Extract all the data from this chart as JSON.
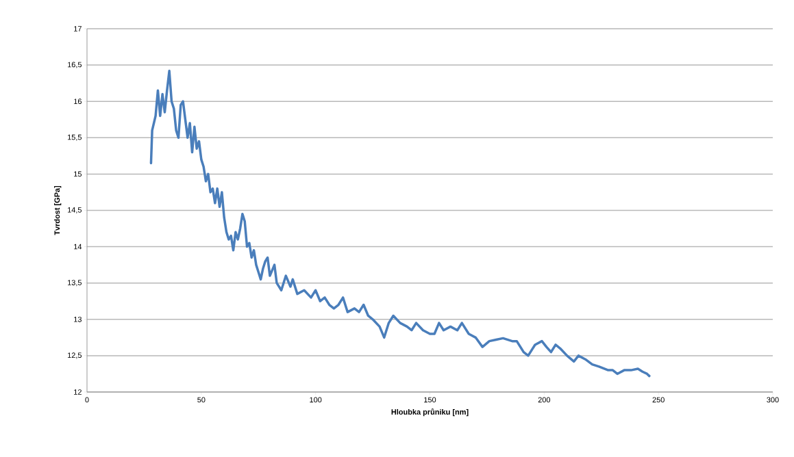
{
  "chart_data": {
    "type": "line",
    "xlabel": "Hloubka průniku [nm]",
    "ylabel": "Tvrdost [GPa]",
    "xlim": [
      0,
      300
    ],
    "ylim": [
      12,
      17
    ],
    "xticks": [
      0,
      50,
      100,
      150,
      200,
      250,
      300
    ],
    "yticks": [
      12,
      {
        "value": 12.5,
        "label": "12,5"
      },
      13,
      {
        "value": 13.5,
        "label": "13,5"
      },
      14,
      {
        "value": 14.5,
        "label": "14,5"
      },
      15,
      {
        "value": 15.5,
        "label": "15,5"
      },
      16,
      {
        "value": 16.5,
        "label": "16,5"
      },
      17
    ],
    "grid": "y",
    "marker": "none",
    "line_style": "solid",
    "series": [
      {
        "color": "#4a7ebb",
        "x": [
          28,
          28.5,
          30,
          31,
          32,
          33,
          34,
          35,
          36,
          37,
          38,
          39,
          40,
          41,
          42,
          43,
          44,
          45,
          46,
          47,
          48,
          49,
          50,
          51,
          52,
          53,
          54,
          55,
          56,
          57,
          58,
          59,
          60,
          61,
          62,
          63,
          64,
          65,
          66,
          67,
          68,
          69,
          70,
          71,
          72,
          73,
          74,
          75,
          76,
          77,
          78,
          79,
          80,
          82,
          83,
          85,
          87,
          89,
          90,
          92,
          95,
          98,
          100,
          102,
          104,
          106,
          108,
          110,
          112,
          114,
          117,
          119,
          121,
          123,
          125,
          128,
          130,
          132,
          134,
          137,
          140,
          142,
          144,
          147,
          150,
          152,
          154,
          156,
          159,
          162,
          164,
          167,
          170,
          173,
          176,
          179,
          182,
          186,
          188,
          191,
          193,
          196,
          199,
          201,
          203,
          205,
          207,
          210,
          213,
          215,
          218,
          221,
          224,
          228,
          230,
          232,
          235,
          238,
          241,
          243,
          245,
          246
        ],
        "values": [
          15.15,
          15.6,
          15.8,
          16.15,
          15.8,
          16.1,
          15.85,
          16.15,
          16.42,
          16.0,
          15.9,
          15.6,
          15.5,
          15.95,
          16.0,
          15.75,
          15.5,
          15.7,
          15.3,
          15.65,
          15.35,
          15.45,
          15.2,
          15.1,
          14.9,
          15.0,
          14.75,
          14.8,
          14.6,
          14.8,
          14.55,
          14.75,
          14.4,
          14.2,
          14.1,
          14.15,
          13.95,
          14.2,
          14.1,
          14.25,
          14.45,
          14.35,
          14.0,
          14.05,
          13.85,
          13.95,
          13.75,
          13.65,
          13.55,
          13.7,
          13.8,
          13.85,
          13.6,
          13.75,
          13.5,
          13.4,
          13.6,
          13.45,
          13.55,
          13.35,
          13.4,
          13.3,
          13.4,
          13.25,
          13.3,
          13.2,
          13.15,
          13.2,
          13.3,
          13.1,
          13.15,
          13.1,
          13.2,
          13.05,
          13.0,
          12.9,
          12.75,
          12.95,
          13.05,
          12.95,
          12.9,
          12.85,
          12.95,
          12.85,
          12.8,
          12.8,
          12.95,
          12.85,
          12.9,
          12.85,
          12.95,
          12.8,
          12.75,
          12.62,
          12.7,
          12.72,
          12.74,
          12.7,
          12.7,
          12.55,
          12.5,
          12.65,
          12.7,
          12.62,
          12.55,
          12.65,
          12.6,
          12.5,
          12.42,
          12.5,
          12.45,
          12.38,
          12.35,
          12.3,
          12.3,
          12.25,
          12.3,
          12.3,
          12.32,
          12.28,
          12.25,
          12.22
        ]
      }
    ]
  }
}
